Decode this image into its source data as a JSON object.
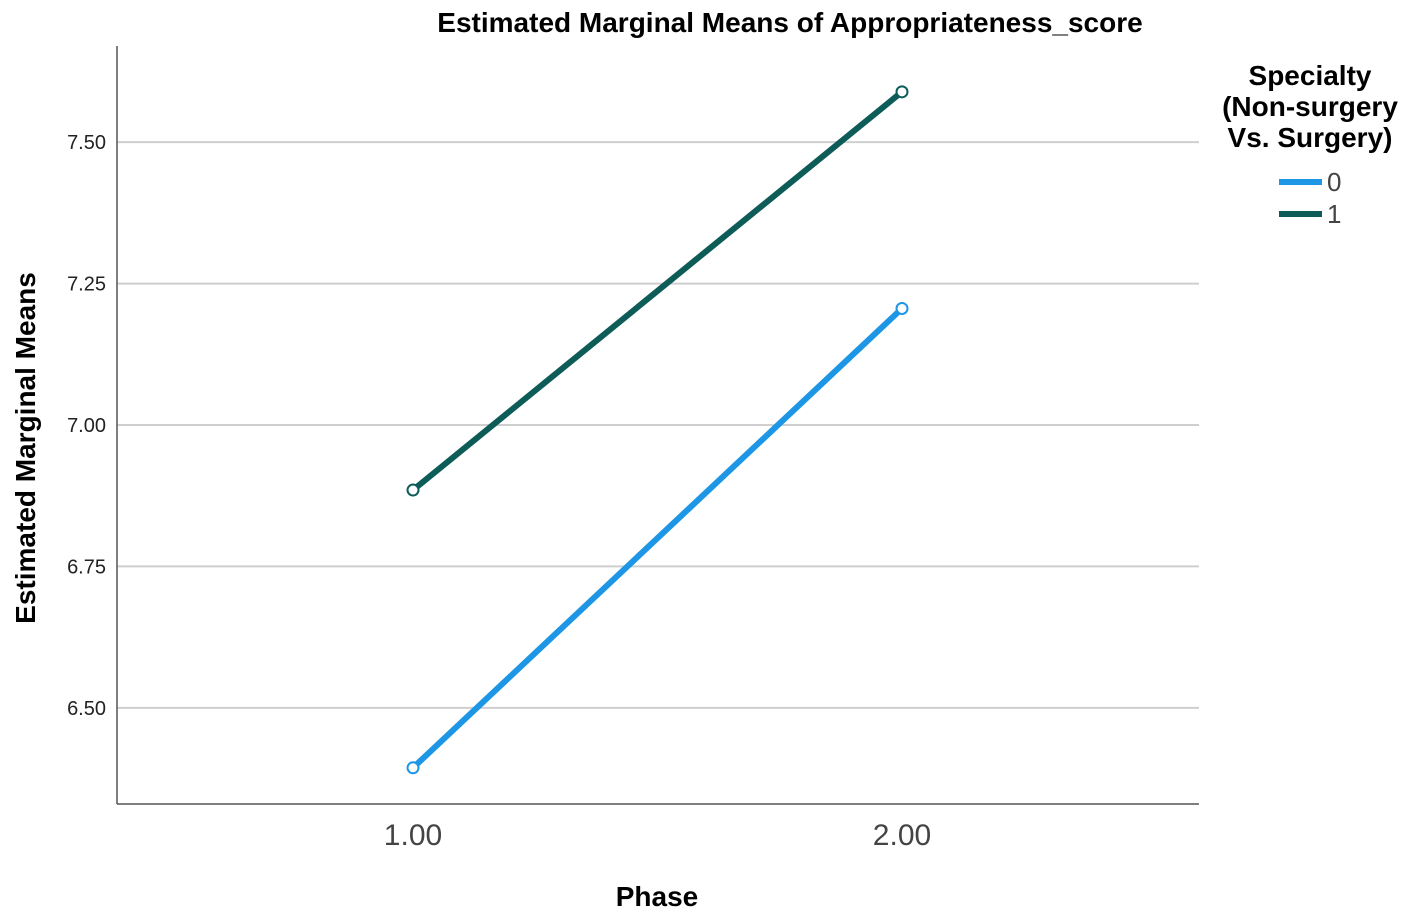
{
  "chart_data": {
    "type": "line",
    "title": "Estimated Marginal Means of Appropriateness_score",
    "xlabel": "Phase",
    "ylabel": "Estimated Marginal Means",
    "categories": [
      "1.00",
      "2.00"
    ],
    "x": [
      1.0,
      2.0
    ],
    "ylim": [
      6.33,
      7.67
    ],
    "yticks": [
      "6.50",
      "6.75",
      "7.00",
      "7.25",
      "7.50"
    ],
    "ytick_values": [
      6.5,
      6.75,
      7.0,
      7.25,
      7.5
    ],
    "grid": "horizontal",
    "legend": {
      "title_lines": [
        "Specialty",
        "(Non-surgery",
        "Vs. Surgery)"
      ],
      "placement": "right"
    },
    "series": [
      {
        "name": "0",
        "values": [
          6.394,
          7.206
        ],
        "color": "#1e96e6"
      },
      {
        "name": "1",
        "values": [
          6.885,
          7.589
        ],
        "color": "#0d5c58"
      }
    ]
  }
}
